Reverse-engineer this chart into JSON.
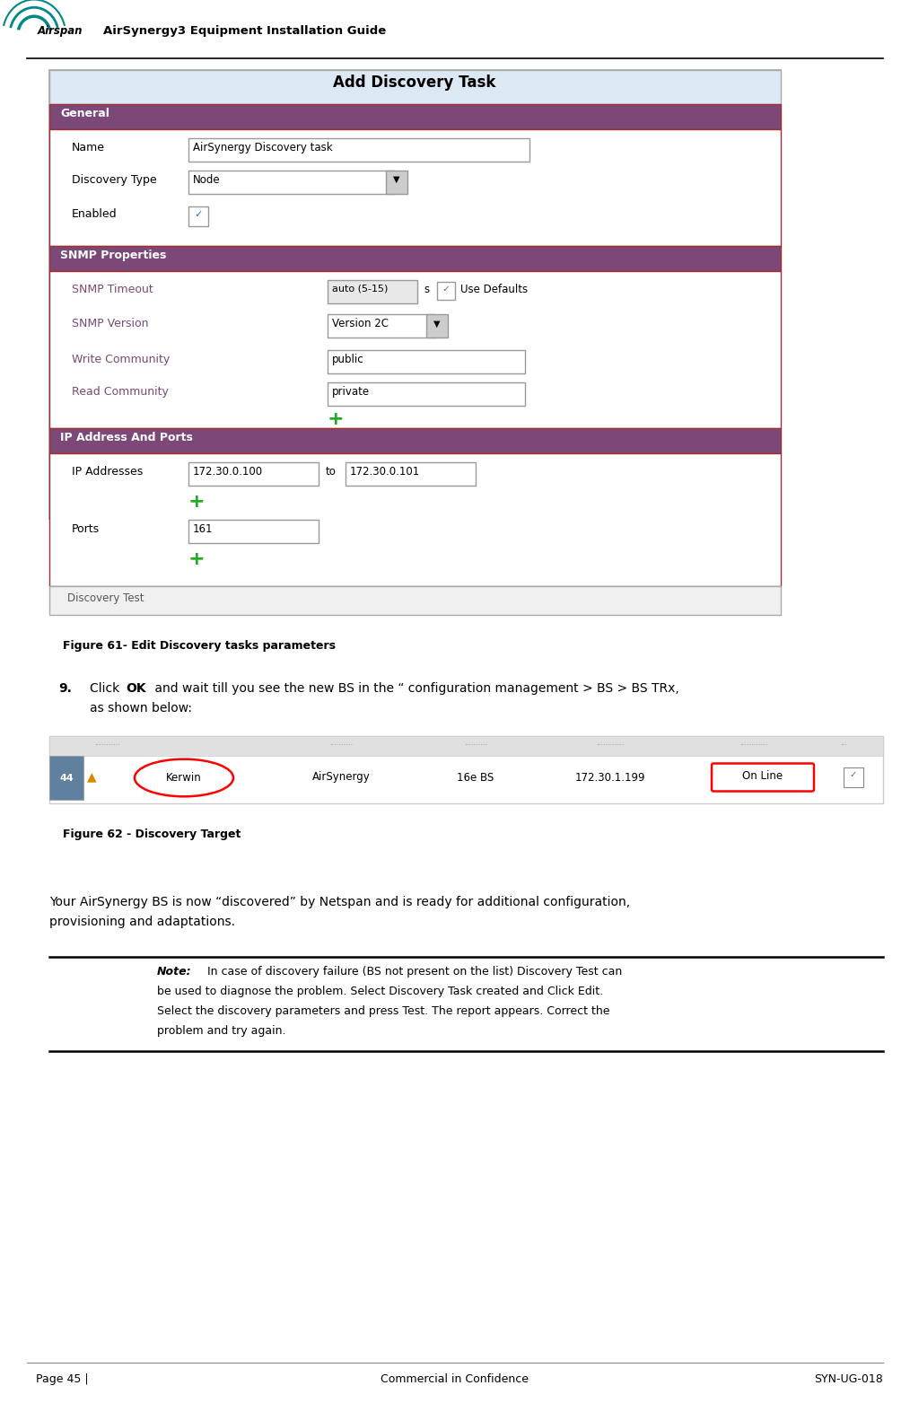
{
  "page_width": 10.14,
  "page_height": 15.63,
  "bg_color": "#ffffff",
  "header_title": "AirSynergy3 Equipment Installation Guide",
  "footer_left": "Page 45 |",
  "footer_center": "Commercial in Confidence",
  "footer_right": "SYN-UG-018",
  "fig61_caption": "Figure 61- Edit Discovery tasks parameters",
  "fig62_caption": "Figure 62 - Discovery Target",
  "main_text_line1": "Your AirSynergy BS is now “discovered” by Netspan and is ready for additional configuration,",
  "main_text_line2": "provisioning and adaptations.",
  "note_line1": " In case of discovery failure (BS not present on the list) Discovery Test can",
  "note_line2": "be used to diagnose the problem. Select Discovery Task created and Click Edit.",
  "note_line3": "Select the discovery parameters and press Test. The report appears. Correct the",
  "note_line4": "problem and try again.",
  "purple_color": "#7b4878",
  "red_border": "#a03030",
  "light_blue_bg": "#eef2f8",
  "teal_color": "#008888",
  "green_plus": "#22aa22",
  "orange_color": "#dd8800"
}
